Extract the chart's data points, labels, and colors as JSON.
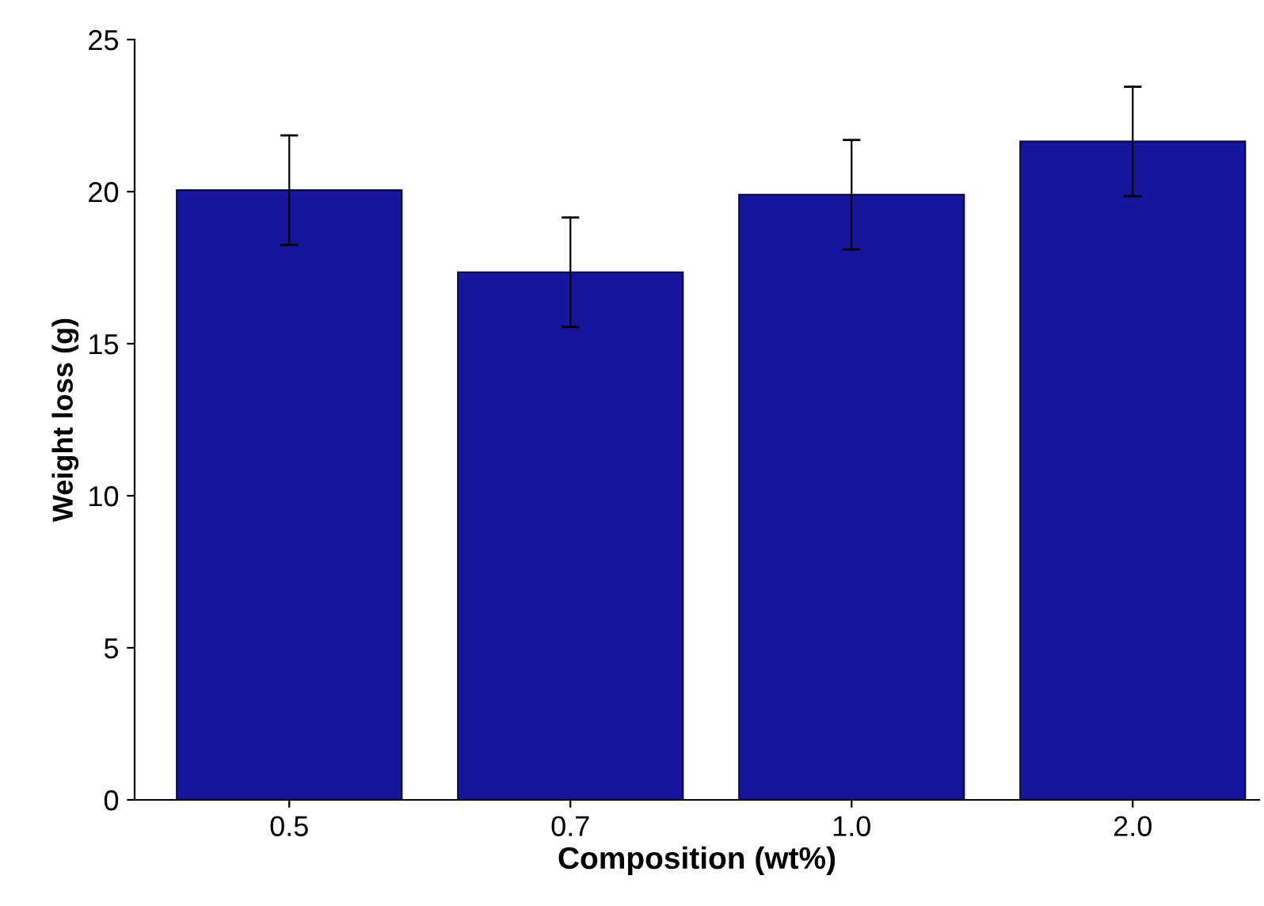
{
  "chart_data": {
    "type": "bar",
    "xlabel": "Composition (wt%)",
    "ylabel": "Weight loss (g)",
    "categories": [
      "0.5",
      "0.7",
      "1.0",
      "2.0"
    ],
    "values": [
      20.05,
      17.35,
      19.9,
      21.65
    ],
    "errors": [
      1.8,
      1.8,
      1.8,
      1.8
    ],
    "color": "#16169c",
    "ylim": [
      0,
      25
    ],
    "yticks": [
      0,
      5,
      10,
      15,
      20,
      25
    ],
    "grid": false
  }
}
